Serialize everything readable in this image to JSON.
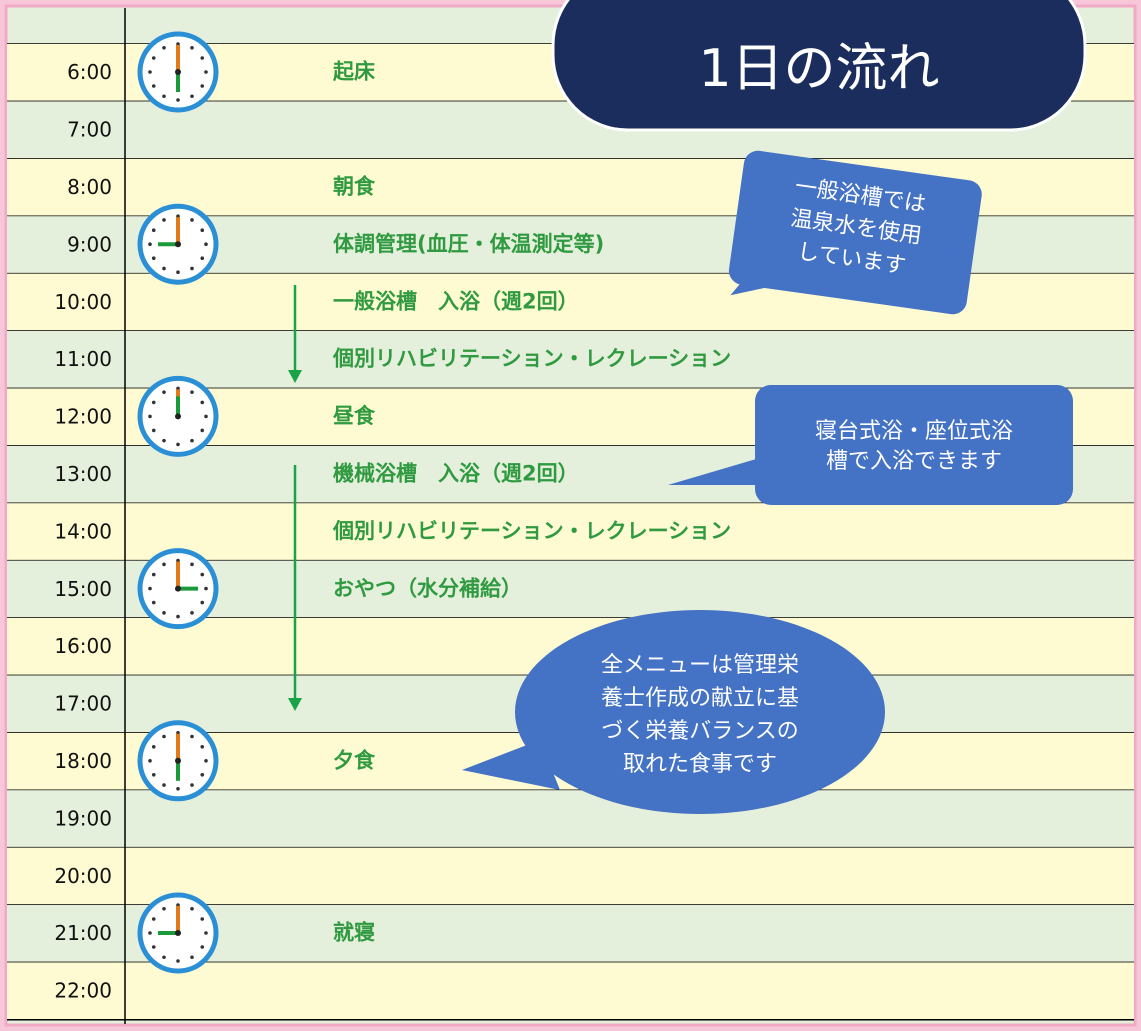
{
  "title": "1日の流れ",
  "schedule": [
    {
      "time": "6:00",
      "activity": "起床"
    },
    {
      "time": "7:00"
    },
    {
      "time": "8:00",
      "activity": "朝食"
    },
    {
      "time": "9:00",
      "activity": "体調管理(血圧・体温測定等)"
    },
    {
      "time": "10:00",
      "activity": "一般浴槽　入浴（週2回）"
    },
    {
      "time": "11:00",
      "activity": "個別リハビリテーション・レクレーション"
    },
    {
      "time": "12:00",
      "activity": "昼食"
    },
    {
      "time": "13:00",
      "activity": "機械浴槽　入浴（週2回）"
    },
    {
      "time": "14:00",
      "activity": "個別リハビリテーション・レクレーション"
    },
    {
      "time": "15:00",
      "activity": "おやつ（水分補給）"
    },
    {
      "time": "16:00"
    },
    {
      "time": "17:00"
    },
    {
      "time": "18:00",
      "activity": "夕食"
    },
    {
      "time": "19:00"
    },
    {
      "time": "20:00"
    },
    {
      "time": "21:00",
      "activity": "就寝"
    },
    {
      "time": "22:00"
    }
  ],
  "bubbles": [
    {
      "lines": [
        "一般浴槽では",
        "温泉水を使用",
        "しています"
      ]
    },
    {
      "lines": [
        "寝台式浴・座位式浴",
        "槽で入浴できます"
      ]
    },
    {
      "lines": [
        "全メニューは管理栄",
        "養士作成の献立に基",
        "づく栄養バランスの",
        "取れた食事です"
      ]
    }
  ]
}
